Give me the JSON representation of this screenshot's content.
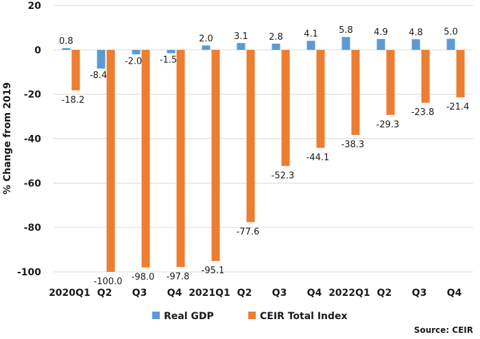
{
  "chart_data": {
    "type": "bar",
    "categories": [
      "2020Q1",
      "Q2",
      "Q3",
      "Q4",
      "2021Q1",
      "Q2",
      "Q3",
      "Q4",
      "2022Q1",
      "Q2",
      "Q3",
      "Q4"
    ],
    "series": [
      {
        "name": "Real GDP",
        "color": "#5b9bd5",
        "values": [
          0.8,
          -8.4,
          -2.0,
          -1.5,
          2.0,
          3.1,
          2.8,
          4.1,
          5.8,
          4.9,
          4.8,
          5.0
        ]
      },
      {
        "name": "CEIR Total Index",
        "color": "#ed7d31",
        "values": [
          -18.2,
          -100.0,
          -98.0,
          -97.8,
          -95.1,
          -77.6,
          -52.3,
          -44.1,
          -38.3,
          -29.3,
          -23.8,
          -21.4
        ]
      }
    ],
    "ylabel": "% Change from 2019",
    "ylim": [
      -100,
      20
    ],
    "yticks": [
      20,
      0,
      -20,
      -40,
      -60,
      -80,
      -100
    ],
    "grid": true,
    "legend_position": "bottom",
    "source": "Source: CEIR"
  }
}
